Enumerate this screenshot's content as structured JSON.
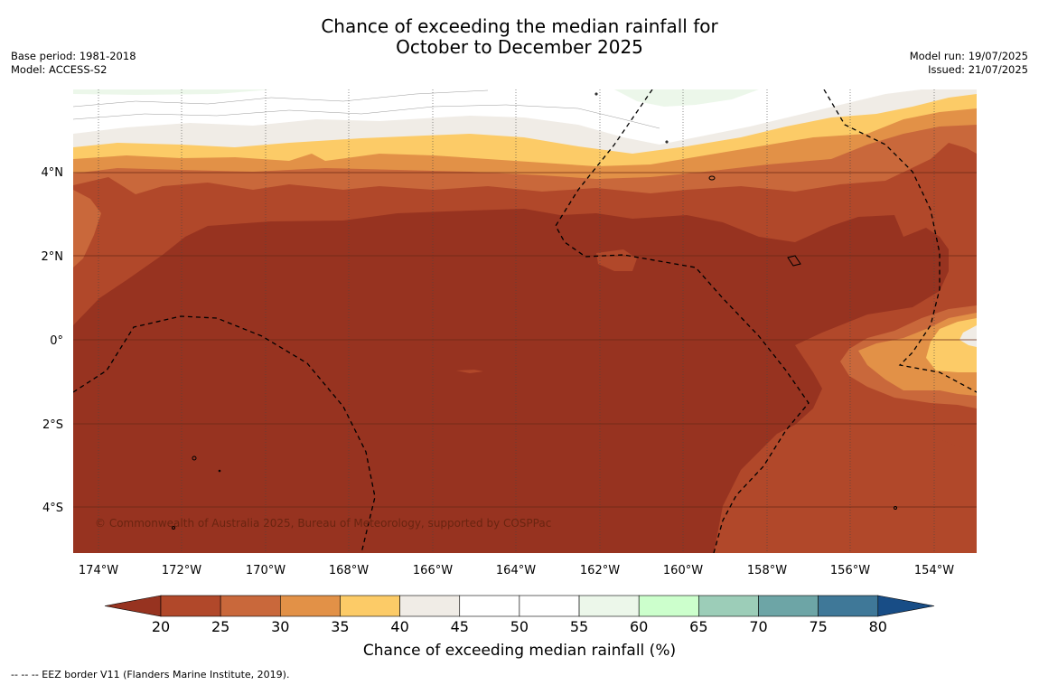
{
  "title": {
    "line1": "Chance of exceeding the median rainfall for",
    "line2": "October to December 2025"
  },
  "meta_left": {
    "base_period": "Base period: 1981-2018",
    "model": "Model: ACCESS-S2"
  },
  "meta_right": {
    "model_run": "Model run: 19/07/2025",
    "issued": "Issued: 21/07/2025"
  },
  "map": {
    "region_extent": {
      "lon": [
        -174.6,
        -152.9
      ],
      "lat": [
        -5.2,
        5.8
      ]
    },
    "x_ticks": [
      "174°W",
      "172°W",
      "170°W",
      "168°W",
      "166°W",
      "164°W",
      "162°W",
      "160°W",
      "158°W",
      "156°W",
      "154°W"
    ],
    "y_ticks": [
      "4°N",
      "2°N",
      "0°",
      "2°S",
      "4°S"
    ],
    "copyright": "© Commonwealth of Australia 2025, Bureau of Meteorology, supported by COSPPac",
    "contour_bands_top_to_bottom": [
      "45-55",
      "40-45",
      "35-40",
      "30-35",
      "25-30",
      "20-25",
      "<20"
    ],
    "eez_lines": "dashed"
  },
  "colorbar": {
    "labels": [
      "20",
      "25",
      "30",
      "35",
      "40",
      "45",
      "50",
      "55",
      "60",
      "65",
      "70",
      "75",
      "80"
    ],
    "colors": [
      "#973320",
      "#b1482a",
      "#c9683b",
      "#e29147",
      "#fccb67",
      "#f0ece6",
      "#ffffff",
      "#ffffff",
      "#ecf7ea",
      "#ccffcc",
      "#9ccdb8",
      "#6da5a6",
      "#3f7898",
      "#184d86"
    ],
    "title": "Chance of exceeding median rainfall (%)"
  },
  "footnote": "--  --  -- EEZ border V11 (Flanders Marine Institute, 2019)."
}
